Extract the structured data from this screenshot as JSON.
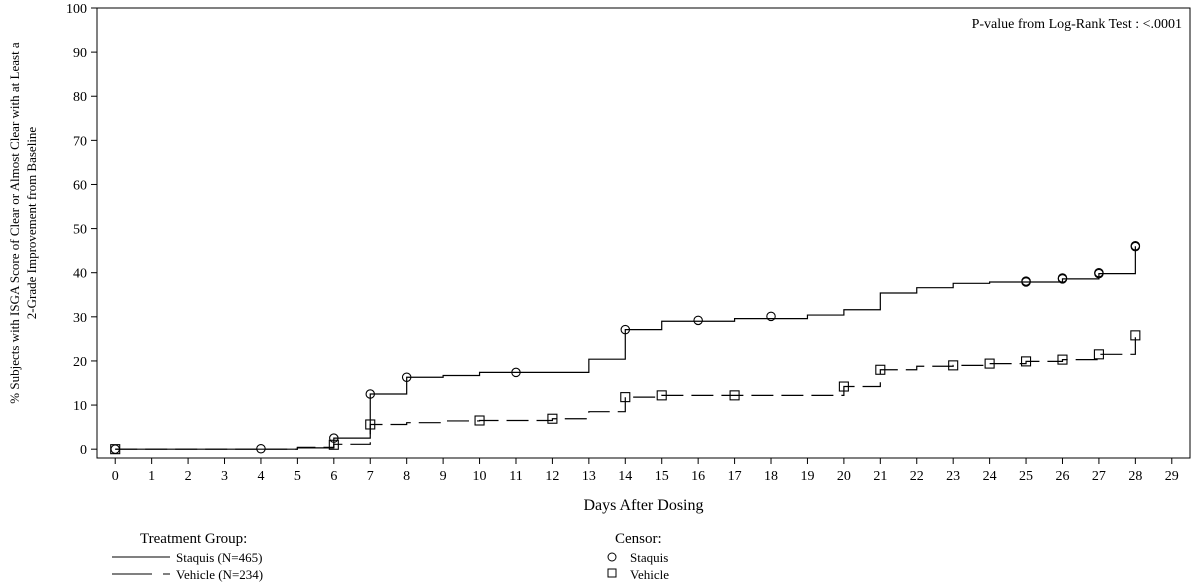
{
  "chart_data": {
    "type": "line",
    "pvalue_text": "P-value from Log-Rank Test : <.0001",
    "xlabel": "Days After Dosing",
    "ylabel_lines": [
      "% Subjects with ISGA Score of Clear or Almost Clear with at Least a",
      "2-Grade Improvement from Baseline"
    ],
    "xlim": [
      -0.5,
      29.5
    ],
    "ylim": [
      -2,
      100
    ],
    "xticks": [
      0,
      1,
      2,
      3,
      4,
      5,
      6,
      7,
      8,
      9,
      10,
      11,
      12,
      13,
      14,
      15,
      16,
      17,
      18,
      19,
      20,
      21,
      22,
      23,
      24,
      25,
      26,
      27,
      28,
      29
    ],
    "yticks": [
      0,
      10,
      20,
      30,
      40,
      50,
      60,
      70,
      80,
      90,
      100
    ],
    "series": [
      {
        "name": "Staquis (N=465)",
        "line_style": "solid",
        "censor_marker": "circle",
        "steps": [
          [
            0,
            0
          ],
          [
            5,
            0.3
          ],
          [
            6,
            2.5
          ],
          [
            7,
            12.5
          ],
          [
            8,
            16.3
          ],
          [
            9,
            16.7
          ],
          [
            10,
            17.4
          ],
          [
            13,
            20.4
          ],
          [
            14,
            27.1
          ],
          [
            15,
            29.0
          ],
          [
            17,
            29.6
          ],
          [
            19,
            30.4
          ],
          [
            20,
            31.6
          ],
          [
            21,
            35.4
          ],
          [
            22,
            36.6
          ],
          [
            23,
            37.6
          ],
          [
            24,
            37.9
          ],
          [
            26,
            38.6
          ],
          [
            27,
            39.8
          ],
          [
            28,
            46.0
          ]
        ],
        "censor_points": [
          [
            0,
            0
          ],
          [
            4,
            0.1
          ],
          [
            6,
            2.5
          ],
          [
            7,
            12.5
          ],
          [
            8,
            16.3
          ],
          [
            11,
            17.4
          ],
          [
            14,
            27.1
          ],
          [
            16,
            29.2
          ],
          [
            18,
            30.1
          ],
          [
            25,
            37.9
          ],
          [
            25,
            38.1
          ],
          [
            26,
            38.6
          ],
          [
            26,
            38.8
          ],
          [
            27,
            39.8
          ],
          [
            27,
            40.0
          ],
          [
            28,
            45.9
          ],
          [
            28,
            46.1
          ]
        ]
      },
      {
        "name": "Vehicle (N=234)",
        "line_style": "dashed",
        "censor_marker": "square",
        "steps": [
          [
            0,
            0
          ],
          [
            5,
            0.4
          ],
          [
            6,
            1.1
          ],
          [
            7,
            5.6
          ],
          [
            8,
            6.0
          ],
          [
            9,
            6.4
          ],
          [
            10,
            6.5
          ],
          [
            12,
            6.9
          ],
          [
            13,
            8.5
          ],
          [
            14,
            11.8
          ],
          [
            15,
            12.2
          ],
          [
            20,
            14.2
          ],
          [
            21,
            18.0
          ],
          [
            22,
            18.8
          ],
          [
            23,
            19.0
          ],
          [
            24,
            19.4
          ],
          [
            25,
            19.9
          ],
          [
            26,
            20.3
          ],
          [
            27,
            21.5
          ],
          [
            28,
            25.8
          ]
        ],
        "censor_points": [
          [
            0,
            0
          ],
          [
            6,
            1.0
          ],
          [
            7,
            5.6
          ],
          [
            10,
            6.5
          ],
          [
            12,
            6.9
          ],
          [
            14,
            11.8
          ],
          [
            15,
            12.2
          ],
          [
            17,
            12.2
          ],
          [
            20,
            14.2
          ],
          [
            21,
            18.0
          ],
          [
            23,
            19.0
          ],
          [
            24,
            19.4
          ],
          [
            25,
            19.9
          ],
          [
            26,
            20.3
          ],
          [
            27,
            21.5
          ],
          [
            28,
            25.8
          ]
        ]
      }
    ],
    "legend": {
      "treatment_title": "Treatment Group:",
      "censor_title": "Censor:",
      "placement": "bottom"
    }
  }
}
